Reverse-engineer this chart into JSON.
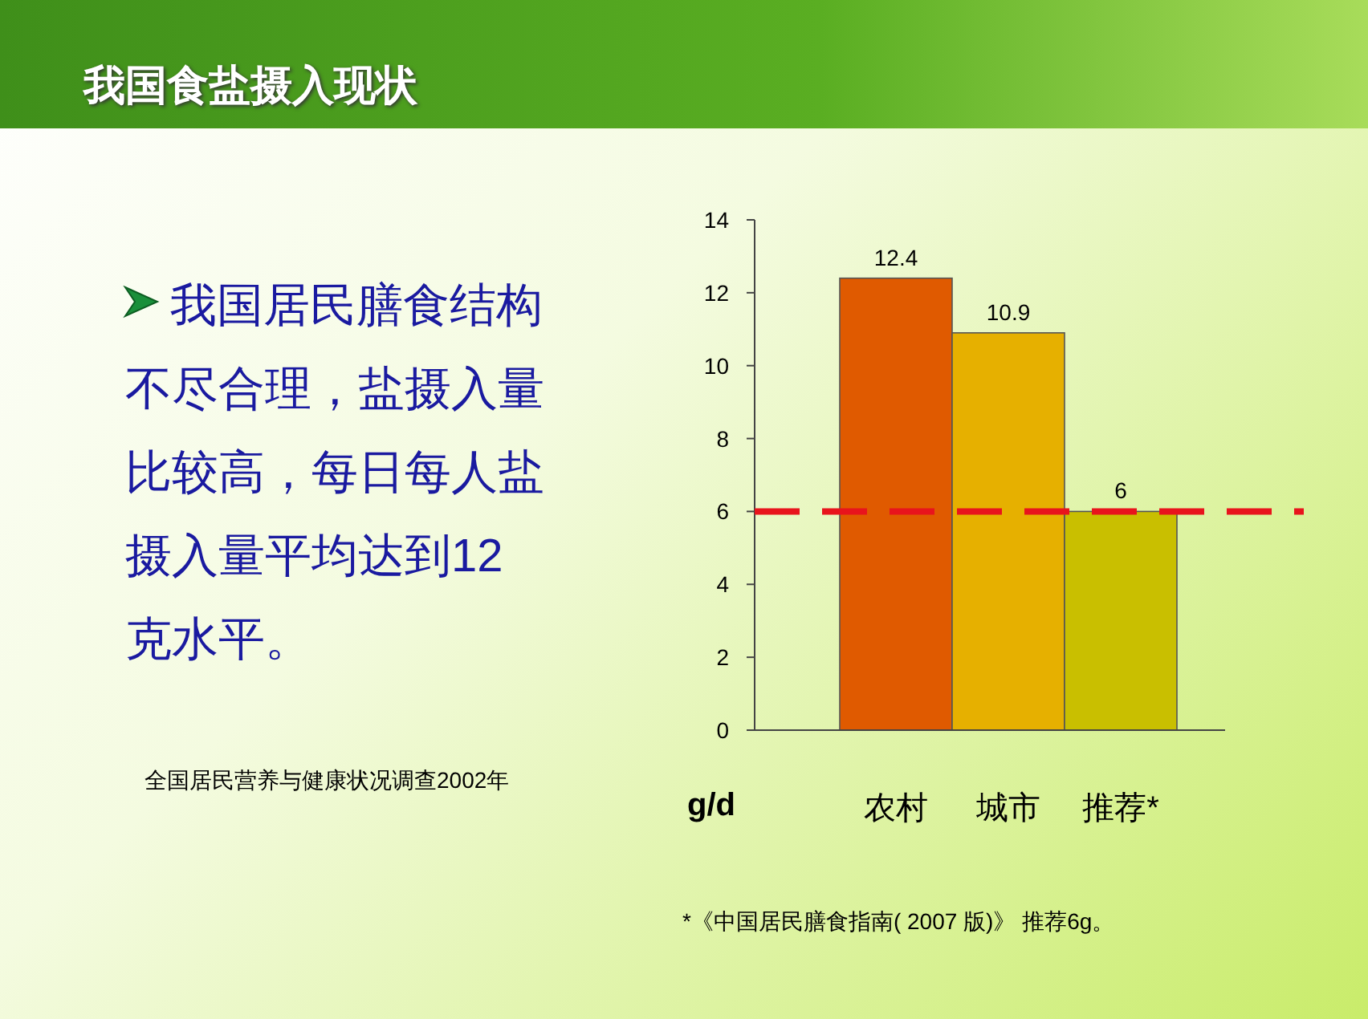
{
  "chart_data": {
    "type": "bar",
    "title": "我国食盐摄入现状",
    "categories": [
      "农村",
      "城市",
      "推荐*"
    ],
    "values": [
      12.4,
      10.9,
      6
    ],
    "colors": [
      "#e05a00",
      "#e6b000",
      "#c9bf00"
    ],
    "ylim": [
      0,
      14
    ],
    "yticks": [
      0,
      2,
      4,
      6,
      8,
      10,
      12,
      14
    ],
    "ylabel": "g/d",
    "data_labels": true,
    "grid": false,
    "ref_lines": [
      {
        "axis": "y",
        "value": 6,
        "color": "#e8141c",
        "line_style": "dashed"
      }
    ],
    "annotations": [
      "我国居民膳食结构不尽合理，盐摄入量比较高，每日每人盐摄入量平均达到12克水平。",
      "全国居民营养与健康状况调查2002年",
      "*《中国居民膳食指南( 2007 版)》 推荐6g。"
    ]
  }
}
